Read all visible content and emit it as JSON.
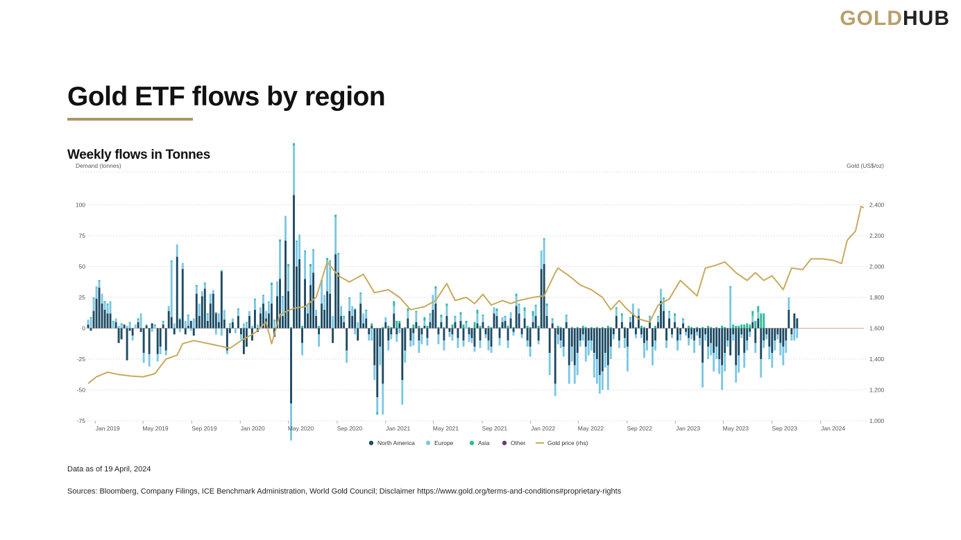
{
  "logo": {
    "part1": "GOLD",
    "part2": "HUB"
  },
  "title": "Gold ETF flows by region",
  "subtitle": "Weekly flows in Tonnes",
  "note": "Data as of 19 April, 2024",
  "sources": "Sources: Bloomberg, Company Filings, ICE Benchmark Administration, World Gold Council; Disclaimer https://www.gold.org/terms-and-conditions#proprietary-rights",
  "colors": {
    "north_america": "#1d4a63",
    "europe": "#7cc7e3",
    "asia": "#2bbd99",
    "other": "#6b3b73",
    "gold_price": "#c9a95c",
    "rule": "#a99663"
  },
  "chart_data": {
    "type": "bar",
    "stacked": true,
    "ylabel_left": "Demand (tonnes)",
    "ylabel_right": "Gold (US$/oz)",
    "ylim_left": [
      -75,
      125
    ],
    "yticks_left": [
      100,
      75,
      50,
      25,
      0,
      -25,
      -50,
      -75
    ],
    "ylim_right": [
      1000,
      2600
    ],
    "yticks_right": [
      "2,400",
      "2,200",
      "2,000",
      "1,800",
      "1,600",
      "1,400",
      "1,200",
      "1,000"
    ],
    "ytick_values_right": [
      2400,
      2200,
      2000,
      1800,
      1600,
      1400,
      1200,
      1000
    ],
    "x_range": [
      "2018-12-14",
      "2024-04-19"
    ],
    "x_ticks": [
      {
        "label": "Jan 2019",
        "date": "2019-01-01"
      },
      {
        "label": "May 2019",
        "date": "2019-05-01"
      },
      {
        "label": "Sep 2019",
        "date": "2019-09-01"
      },
      {
        "label": "Jan 2020",
        "date": "2020-01-01"
      },
      {
        "label": "May 2020",
        "date": "2020-05-01"
      },
      {
        "label": "Sep 2020",
        "date": "2020-09-01"
      },
      {
        "label": "Jan 2021",
        "date": "2021-01-01"
      },
      {
        "label": "May 2021",
        "date": "2021-05-01"
      },
      {
        "label": "Sep 2021",
        "date": "2021-09-01"
      },
      {
        "label": "Jan 2022",
        "date": "2022-01-01"
      },
      {
        "label": "May 2022",
        "date": "2022-05-01"
      },
      {
        "label": "Sep 2022",
        "date": "2022-09-01"
      },
      {
        "label": "Jan 2023",
        "date": "2023-01-01"
      },
      {
        "label": "May 2023",
        "date": "2023-05-01"
      },
      {
        "label": "Sep 2023",
        "date": "2023-09-01"
      },
      {
        "label": "Jan 2024",
        "date": "2024-01-01"
      }
    ],
    "grid": true,
    "legend_position": "bottom-center",
    "legend": [
      "North America",
      "Europe",
      "Asia",
      "Other",
      "Gold price (rhs)"
    ],
    "gold_price_series": {
      "name": "Gold price (rhs)",
      "x": [
        "2018-12-14",
        "2019-01-04",
        "2019-02-01",
        "2019-03-01",
        "2019-04-01",
        "2019-05-01",
        "2019-05-31",
        "2019-06-28",
        "2019-07-26",
        "2019-08-09",
        "2019-09-06",
        "2019-10-04",
        "2019-11-01",
        "2019-12-06",
        "2020-01-03",
        "2020-02-07",
        "2020-03-06",
        "2020-03-20",
        "2020-04-10",
        "2020-05-15",
        "2020-06-12",
        "2020-07-10",
        "2020-08-07",
        "2020-09-04",
        "2020-10-02",
        "2020-11-06",
        "2020-12-04",
        "2021-01-08",
        "2021-02-05",
        "2021-03-05",
        "2021-04-09",
        "2021-05-07",
        "2021-06-04",
        "2021-06-25",
        "2021-07-23",
        "2021-08-13",
        "2021-09-03",
        "2021-09-24",
        "2021-10-22",
        "2021-11-12",
        "2021-12-03",
        "2022-01-07",
        "2022-02-04",
        "2022-03-04",
        "2022-03-11",
        "2022-04-08",
        "2022-05-06",
        "2022-06-03",
        "2022-07-01",
        "2022-07-22",
        "2022-08-12",
        "2022-09-02",
        "2022-09-30",
        "2022-10-28",
        "2022-11-18",
        "2022-12-16",
        "2023-01-13",
        "2023-02-03",
        "2023-02-24",
        "2023-03-17",
        "2023-04-14",
        "2023-05-05",
        "2023-06-02",
        "2023-06-30",
        "2023-07-21",
        "2023-08-11",
        "2023-09-01",
        "2023-09-29",
        "2023-10-20",
        "2023-11-17",
        "2023-12-08",
        "2024-01-05",
        "2024-02-02",
        "2024-02-23",
        "2024-03-08",
        "2024-03-29",
        "2024-04-12",
        "2024-04-19"
      ],
      "y": [
        1242,
        1285,
        1315,
        1300,
        1290,
        1285,
        1305,
        1400,
        1425,
        1500,
        1520,
        1505,
        1490,
        1470,
        1520,
        1570,
        1640,
        1500,
        1690,
        1730,
        1740,
        1800,
        2030,
        1940,
        1900,
        1950,
        1830,
        1850,
        1800,
        1720,
        1740,
        1780,
        1890,
        1780,
        1800,
        1760,
        1820,
        1750,
        1780,
        1760,
        1780,
        1800,
        1810,
        1960,
        1990,
        1940,
        1880,
        1850,
        1800,
        1720,
        1780,
        1720,
        1660,
        1640,
        1750,
        1790,
        1910,
        1860,
        1810,
        1990,
        2010,
        2030,
        1960,
        1910,
        1960,
        1910,
        1940,
        1850,
        1990,
        1980,
        2050,
        2050,
        2040,
        2020,
        2170,
        2230,
        2390,
        2380
      ]
    },
    "series_note": "Weekly regional flows (tonnes); values estimated from the chart. Positive and negative values stack from zero.",
    "weekly_series": {
      "weeks_start": "2018-12-14",
      "North America": [
        3,
        -2,
        14,
        24,
        33,
        20,
        15,
        12,
        12,
        0,
        5,
        -12,
        -9,
        3,
        -26,
        -2,
        -6,
        0,
        5,
        -3,
        -20,
        2,
        -21,
        4,
        0,
        -21,
        -15,
        3,
        -18,
        14,
        9,
        -5,
        58,
        7,
        48,
        -5,
        2,
        6,
        -6,
        28,
        10,
        26,
        32,
        6,
        20,
        28,
        12,
        5,
        46,
        7,
        -18,
        -4,
        5,
        0,
        10,
        -5,
        -21,
        -15,
        10,
        -10,
        15,
        -3,
        12,
        20,
        8,
        12,
        20,
        -7,
        26,
        40,
        10,
        71,
        30,
        -61,
        108,
        50,
        56,
        -12,
        40,
        12,
        35,
        45,
        10,
        -5,
        20,
        15,
        30,
        28,
        -12,
        60,
        45,
        10,
        5,
        -18,
        14,
        10,
        15,
        -10,
        20,
        4,
        8,
        -5,
        2,
        -30,
        -56,
        -15,
        -45,
        5,
        -10,
        -5,
        12,
        -5,
        4,
        -42,
        -18,
        8,
        -10,
        -4,
        5,
        -10,
        -5,
        2,
        -8,
        5,
        15,
        20,
        -5,
        5,
        -10,
        10,
        -3,
        -5,
        5,
        -8,
        6,
        -10,
        0,
        -5,
        -8,
        -15,
        4,
        -10,
        5,
        -5,
        -10,
        -15,
        12,
        10,
        -8,
        5,
        6,
        -10,
        8,
        -3,
        18,
        12,
        -5,
        8,
        -10,
        -15,
        5,
        10,
        -10,
        48,
        52,
        10,
        -20,
        4,
        -45,
        -5,
        -10,
        -15,
        5,
        -30,
        -15,
        -30,
        -20,
        -10,
        -5,
        -15,
        -10,
        -10,
        -20,
        -25,
        -38,
        -35,
        -20,
        -30,
        -15,
        -5,
        10,
        -10,
        5,
        -8,
        -15,
        5,
        12,
        -5,
        10,
        -5,
        -12,
        -10,
        5,
        -15,
        -10,
        5,
        22,
        14,
        -10,
        8,
        -5,
        5,
        -10,
        -5,
        4,
        -3,
        -8,
        -5,
        -10,
        -3,
        -8,
        -28,
        -5,
        -15,
        -12,
        -20,
        -15,
        -25,
        -30,
        -20,
        -10,
        -22,
        -5,
        -30,
        -22,
        -5,
        -20,
        -10,
        -3,
        5,
        -12,
        8,
        -25,
        -10,
        -5,
        -15,
        -20,
        -10,
        -5,
        -12,
        -15,
        -10,
        15,
        -5,
        12,
        8
      ],
      "Europe": [
        4,
        8,
        10,
        10,
        5,
        8,
        6,
        7,
        10,
        5,
        3,
        2,
        3,
        0,
        2,
        4,
        -4,
        3,
        2,
        12,
        -8,
        0,
        -10,
        -3,
        2,
        -6,
        -6,
        2,
        -4,
        4,
        45,
        4,
        10,
        -3,
        5,
        6,
        8,
        -2,
        8,
        6,
        10,
        4,
        4,
        5,
        8,
        3,
        -5,
        7,
        -6,
        8,
        -3,
        3,
        3,
        -4,
        5,
        -4,
        4,
        4,
        4,
        2,
        8,
        3,
        5,
        6,
        6,
        10,
        15,
        6,
        12,
        30,
        15,
        20,
        20,
        -30,
        40,
        20,
        20,
        -10,
        22,
        8,
        15,
        18,
        5,
        -10,
        18,
        12,
        25,
        26,
        10,
        30,
        15,
        8,
        4,
        -10,
        10,
        8,
        -5,
        5,
        8,
        8,
        6,
        -5,
        -10,
        -12,
        -12,
        -15,
        -25,
        4,
        -8,
        -4,
        6,
        -6,
        -4,
        -20,
        -10,
        6,
        -5,
        -10,
        8,
        -10,
        -8,
        4,
        -6,
        6,
        12,
        12,
        -8,
        4,
        -8,
        8,
        -4,
        -5,
        4,
        -8,
        5,
        -5,
        4,
        -6,
        -4,
        -4,
        8,
        -6,
        5,
        -3,
        -8,
        -5,
        5,
        4,
        -6,
        4,
        3,
        -6,
        5,
        -3,
        8,
        7,
        -3,
        6,
        -5,
        -8,
        5,
        8,
        -3,
        15,
        20,
        8,
        -18,
        3,
        -10,
        -8,
        -6,
        -8,
        5,
        -15,
        -12,
        -15,
        -18,
        -5,
        -5,
        -12,
        -12,
        -8,
        -20,
        -20,
        -15,
        -15,
        -12,
        -20,
        -10,
        -4,
        6,
        -6,
        5,
        -8,
        -20,
        3,
        8,
        -3,
        6,
        -3,
        -12,
        -8,
        4,
        -15,
        -8,
        4,
        10,
        10,
        -6,
        5,
        -3,
        5,
        -8,
        -5,
        3,
        -3,
        -6,
        -4,
        -10,
        -3,
        -6,
        -20,
        -5,
        -10,
        -10,
        -15,
        -10,
        -12,
        -20,
        -15,
        -5,
        33,
        -5,
        -14,
        -14,
        -3,
        -12,
        -8,
        -4,
        5,
        -8,
        5,
        -15,
        -6,
        -4,
        -10,
        -12,
        -8,
        -4,
        -10,
        -15,
        -10,
        10,
        -5,
        -10,
        -8
      ],
      "Asia": [
        0,
        1,
        1,
        0,
        1,
        0,
        1,
        1,
        0,
        1,
        0,
        0,
        1,
        0,
        0,
        1,
        0,
        0,
        1,
        0,
        0,
        1,
        0,
        0,
        1,
        0,
        0,
        1,
        0,
        0,
        1,
        0,
        0,
        1,
        0,
        0,
        1,
        0,
        0,
        1,
        0,
        0,
        1,
        1,
        0,
        0,
        1,
        0,
        1,
        0,
        0,
        1,
        0,
        0,
        1,
        0,
        0,
        1,
        0,
        0,
        1,
        0,
        0,
        1,
        0,
        0,
        2,
        1,
        0,
        2,
        1,
        0,
        2,
        1,
        2,
        1,
        0,
        2,
        1,
        0,
        2,
        1,
        0,
        2,
        1,
        0,
        2,
        1,
        0,
        2,
        1,
        0,
        1,
        0,
        1,
        0,
        1,
        0,
        1,
        0,
        1,
        0,
        2,
        0,
        -2,
        0,
        1,
        0,
        2,
        1,
        4,
        6,
        2,
        0,
        1,
        2,
        0,
        3,
        1,
        2,
        0,
        3,
        2,
        1,
        0,
        2,
        1,
        2,
        1,
        2,
        0,
        3,
        1,
        0,
        2,
        3,
        2,
        1,
        0,
        5,
        3,
        2,
        1,
        0,
        2,
        1,
        0,
        2,
        1,
        0,
        1,
        2,
        0,
        1,
        2,
        1,
        0,
        3,
        2,
        1,
        4,
        1,
        2,
        0,
        1,
        2,
        0,
        1,
        0,
        2,
        1,
        0,
        1,
        0,
        1,
        0,
        1,
        0,
        2,
        1,
        0,
        1,
        0,
        1,
        0,
        1,
        0,
        2,
        1,
        0,
        1,
        0,
        2,
        1,
        0,
        1,
        0,
        1,
        0,
        2,
        1,
        0,
        1,
        0,
        2,
        1,
        0,
        1,
        0,
        1,
        0,
        2,
        1,
        0,
        1,
        0,
        2,
        1,
        0,
        1,
        0,
        1,
        0,
        2,
        1,
        0,
        1,
        0,
        2,
        1,
        0,
        1,
        3,
        2,
        2,
        3,
        3,
        4,
        3,
        4,
        6,
        5,
        12,
        12
      ],
      "Other": [
        0,
        0,
        0,
        0,
        0,
        0,
        0,
        0,
        0,
        0,
        0,
        0,
        0,
        0,
        0,
        0,
        0,
        0,
        0,
        0,
        0,
        0,
        0,
        0,
        0,
        0,
        0,
        0,
        0,
        0,
        0,
        0,
        0,
        0,
        0,
        0,
        0,
        0,
        0,
        0,
        0,
        0,
        0,
        0,
        0,
        0,
        0,
        0,
        0,
        0,
        0,
        0,
        0,
        0,
        0,
        0,
        0,
        0,
        0,
        0,
        0,
        0,
        0,
        0,
        0,
        0,
        0,
        0,
        0,
        0,
        0,
        0,
        0,
        0,
        0,
        0,
        0,
        0,
        0,
        0,
        0,
        0,
        0,
        0,
        0,
        0,
        0,
        0,
        0,
        0,
        0,
        0,
        0,
        0,
        0,
        0,
        0,
        0,
        0,
        0,
        0,
        0,
        0,
        0,
        0,
        0,
        0,
        0,
        0,
        0,
        0,
        0,
        0,
        0,
        0,
        0,
        0,
        0,
        0,
        0,
        0,
        0,
        0,
        0,
        0,
        0,
        0,
        0,
        0,
        0,
        0,
        0,
        0,
        0,
        0,
        0,
        0,
        0,
        0,
        0,
        0,
        0,
        0,
        0,
        0,
        0,
        0,
        0,
        0,
        0,
        0,
        0,
        0,
        0,
        0,
        0,
        0,
        0,
        0,
        0,
        0,
        0,
        0,
        0,
        0,
        0,
        0,
        0,
        0,
        0,
        0,
        0,
        0,
        0,
        0,
        0,
        0,
        0,
        0,
        0,
        0,
        0,
        0,
        0,
        0,
        0,
        0,
        0,
        0,
        0,
        0,
        0,
        0,
        0,
        0,
        0,
        0,
        0,
        0,
        0,
        0,
        0,
        0,
        0,
        0,
        0,
        0,
        0,
        0,
        0,
        0,
        0,
        0,
        0,
        0,
        0,
        0,
        0,
        0,
        0,
        0,
        0,
        0,
        0,
        0,
        0,
        0,
        0,
        0,
        0,
        0,
        0,
        0,
        0,
        0,
        0,
        0,
        0,
        0,
        0,
        0,
        0,
        0,
        0,
        0,
        0,
        0,
        0,
        0,
        0,
        0,
        0,
        0,
        0,
        0,
        0,
        0,
        0,
        0,
        0,
        0,
        0,
        0,
        0,
        0,
        0,
        0,
        0
      ]
    }
  }
}
